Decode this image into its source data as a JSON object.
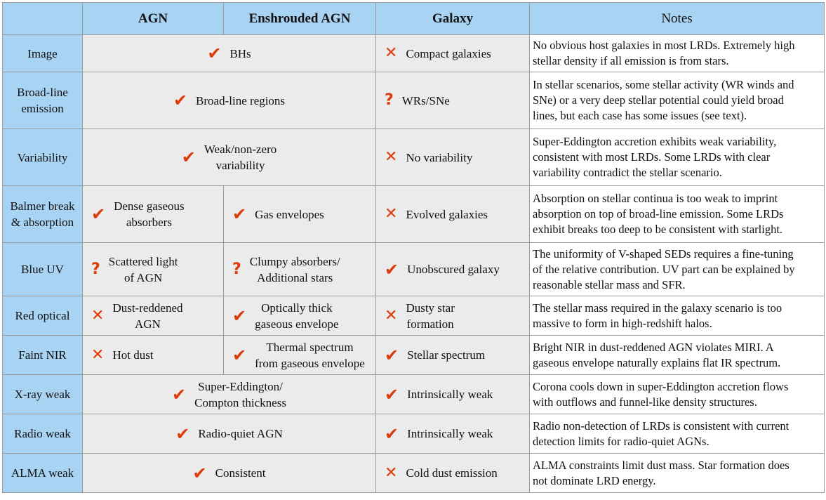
{
  "header": {
    "col_agn": "AGN",
    "col_enshrouded": "Enshrouded AGN",
    "col_galaxy": "Galaxy",
    "col_notes": "Notes"
  },
  "rows": [
    {
      "label_lines": [
        "Image"
      ],
      "agn_merged": true,
      "agn": {
        "mark": "check",
        "lines": [
          "BHs"
        ]
      },
      "galaxy": {
        "mark": "cross",
        "lines": [
          "Compact galaxies"
        ]
      },
      "notes_lines": [
        "No obvious host galaxies in most LRDs. Extremely high",
        "stellar density if all emission is from stars."
      ]
    },
    {
      "label_lines": [
        "Broad-line",
        "emission"
      ],
      "agn_merged": true,
      "agn": {
        "mark": "check",
        "lines": [
          "Broad-line regions"
        ]
      },
      "galaxy": {
        "mark": "question",
        "lines": [
          "WRs/SNe"
        ]
      },
      "notes_lines": [
        "In stellar scenarios, some stellar activity (WR winds and",
        "SNe) or a very deep stellar potential could yield broad",
        "lines, but each case has some issues (see text)."
      ]
    },
    {
      "label_lines": [
        "Variability"
      ],
      "agn_merged": true,
      "agn": {
        "mark": "check",
        "lines": [
          "Weak/non-zero",
          "variability"
        ]
      },
      "galaxy": {
        "mark": "cross",
        "lines": [
          "No variability"
        ]
      },
      "notes_lines": [
        "Super-Eddington accretion exhibits weak variability,",
        "consistent with most LRDs. Some LRDs with clear",
        "variability contradict the stellar scenario."
      ]
    },
    {
      "label_lines": [
        "Balmer break",
        "& absorption"
      ],
      "agn_merged": false,
      "agn": {
        "mark": "check",
        "lines": [
          "Dense gaseous",
          "absorbers"
        ]
      },
      "enshrouded": {
        "mark": "check",
        "lines": [
          "Gas envelopes"
        ]
      },
      "galaxy": {
        "mark": "cross",
        "lines": [
          "Evolved galaxies"
        ]
      },
      "notes_lines": [
        "Absorption on stellar continua is too weak to imprint",
        "absorption on top of broad-line emission. Some LRDs",
        "exhibit breaks too deep to be consistent with starlight."
      ]
    },
    {
      "label_lines": [
        "Blue UV"
      ],
      "agn_merged": false,
      "agn": {
        "mark": "question",
        "lines": [
          "Scattered light",
          "of AGN"
        ]
      },
      "enshrouded": {
        "mark": "question",
        "lines": [
          "Clumpy absorbers/",
          "Additional stars"
        ]
      },
      "galaxy": {
        "mark": "check",
        "lines": [
          "Unobscured galaxy"
        ]
      },
      "notes_lines": [
        "The uniformity of V-shaped SEDs requires a fine-tuning",
        "of the relative contribution. UV part can be explained by",
        "reasonable stellar mass and SFR."
      ]
    },
    {
      "label_lines": [
        "Red optical"
      ],
      "agn_merged": false,
      "agn": {
        "mark": "cross",
        "lines": [
          "Dust-reddened",
          "AGN"
        ]
      },
      "enshrouded": {
        "mark": "check",
        "lines": [
          "Optically thick",
          "gaseous envelope"
        ]
      },
      "galaxy": {
        "mark": "cross",
        "lines": [
          "Dusty star",
          "formation"
        ]
      },
      "notes_lines": [
        "The stellar mass required in the galaxy scenario is too",
        "massive to form in high-redshift halos."
      ]
    },
    {
      "label_lines": [
        "Faint NIR"
      ],
      "agn_merged": false,
      "agn": {
        "mark": "cross",
        "lines": [
          "Hot dust"
        ]
      },
      "enshrouded": {
        "mark": "check",
        "lines": [
          "Thermal spectrum",
          "from gaseous envelope"
        ]
      },
      "galaxy": {
        "mark": "check",
        "lines": [
          "Stellar spectrum"
        ]
      },
      "notes_lines": [
        "Bright NIR in dust-reddened AGN violates MIRI. A",
        "gaseous envelope naturally explains flat IR spectrum."
      ]
    },
    {
      "label_lines": [
        "X-ray weak"
      ],
      "agn_merged": true,
      "agn": {
        "mark": "check",
        "lines": [
          "Super-Eddington/",
          "Compton thickness"
        ]
      },
      "galaxy": {
        "mark": "check",
        "lines": [
          "Intrinsically weak"
        ]
      },
      "notes_lines": [
        "Corona cools down in super-Eddington accretion flows",
        "with outflows and funnel-like density structures."
      ]
    },
    {
      "label_lines": [
        "Radio weak"
      ],
      "agn_merged": true,
      "agn": {
        "mark": "check",
        "lines": [
          "Radio-quiet AGN"
        ]
      },
      "galaxy": {
        "mark": "check",
        "lines": [
          "Intrinsically weak"
        ]
      },
      "notes_lines": [
        "Radio non-detection of LRDs is consistent with current",
        "detection limits for radio-quiet AGNs."
      ]
    },
    {
      "label_lines": [
        "ALMA weak"
      ],
      "agn_merged": true,
      "agn": {
        "mark": "check",
        "lines": [
          "Consistent"
        ]
      },
      "galaxy": {
        "mark": "cross",
        "lines": [
          "Cold dust emission"
        ]
      },
      "notes_lines": [
        "ALMA constraints limit dust mass. Star formation does",
        "not dominate LRD energy."
      ]
    }
  ],
  "marks": {
    "check": "✔",
    "cross": "✕",
    "question": "?"
  },
  "colors": {
    "header_bg": "#a9d3f3",
    "cell_bg": "#ebebeb",
    "mark": "#dd3c0a"
  }
}
